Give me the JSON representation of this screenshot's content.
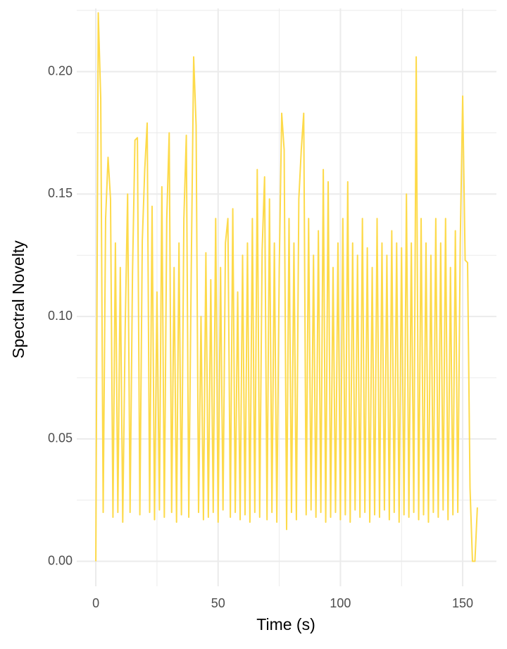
{
  "chart_data": {
    "type": "line",
    "x_label": "Time (s)",
    "y_label": "Spectral Novelty",
    "color": "#fdda4a",
    "grid": true,
    "xlim": [
      -7.8,
      163.8
    ],
    "ylim": [
      -0.0102,
      0.2258
    ],
    "xticks": [
      0,
      50,
      100,
      150
    ],
    "yticks": [
      {
        "value": 0,
        "label": "0.00"
      },
      {
        "value": 0.05,
        "label": "0.05"
      },
      {
        "value": 0.1,
        "label": "0.10"
      },
      {
        "value": 0.15,
        "label": "0.15"
      },
      {
        "value": 0.2,
        "label": "0.20"
      }
    ],
    "x_minor_ticks": [
      25,
      75,
      125
    ],
    "y_minor_ticks": [
      0.025,
      0.075,
      0.125,
      0.175,
      0.225
    ],
    "x": [
      0,
      1,
      2,
      3,
      4,
      5,
      6,
      7,
      8,
      9,
      10,
      11,
      12,
      13,
      14,
      15,
      16,
      17,
      18,
      19,
      20,
      21,
      22,
      23,
      24,
      25,
      26,
      27,
      28,
      29,
      30,
      31,
      32,
      33,
      34,
      35,
      36,
      37,
      38,
      39,
      40,
      41,
      42,
      43,
      44,
      45,
      46,
      47,
      48,
      49,
      50,
      51,
      52,
      53,
      54,
      55,
      56,
      57,
      58,
      59,
      60,
      61,
      62,
      63,
      64,
      65,
      66,
      67,
      68,
      69,
      70,
      71,
      72,
      73,
      74,
      75,
      76,
      77,
      78,
      79,
      80,
      81,
      82,
      83,
      84,
      85,
      86,
      87,
      88,
      89,
      90,
      91,
      92,
      93,
      94,
      95,
      96,
      97,
      98,
      99,
      100,
      101,
      102,
      103,
      104,
      105,
      106,
      107,
      108,
      109,
      110,
      111,
      112,
      113,
      114,
      115,
      116,
      117,
      118,
      119,
      120,
      121,
      122,
      123,
      124,
      125,
      126,
      127,
      128,
      129,
      130,
      131,
      132,
      133,
      134,
      135,
      136,
      137,
      138,
      139,
      140,
      141,
      142,
      143,
      144,
      145,
      146,
      147,
      148,
      149,
      150,
      151,
      152,
      153,
      154,
      155,
      156
    ],
    "values": [
      0,
      0.224,
      0.189,
      0.02,
      0.14,
      0.165,
      0.148,
      0.018,
      0.13,
      0.02,
      0.12,
      0.016,
      0.095,
      0.15,
      0.02,
      0.118,
      0.172,
      0.173,
      0.019,
      0.131,
      0.16,
      0.179,
      0.02,
      0.145,
      0.017,
      0.11,
      0.021,
      0.153,
      0.018,
      0.14,
      0.175,
      0.02,
      0.12,
      0.016,
      0.13,
      0.019,
      0.14,
      0.174,
      0.018,
      0.118,
      0.206,
      0.178,
      0.02,
      0.1,
      0.017,
      0.126,
      0.018,
      0.115,
      0.02,
      0.14,
      0.016,
      0.12,
      0.021,
      0.13,
      0.14,
      0.018,
      0.144,
      0.02,
      0.11,
      0.017,
      0.125,
      0.019,
      0.13,
      0.016,
      0.14,
      0.02,
      0.16,
      0.018,
      0.127,
      0.157,
      0.017,
      0.148,
      0.02,
      0.13,
      0.016,
      0.12,
      0.183,
      0.168,
      0.013,
      0.14,
      0.02,
      0.13,
      0.017,
      0.148,
      0.168,
      0.183,
      0.019,
      0.14,
      0.021,
      0.125,
      0.018,
      0.135,
      0.02,
      0.16,
      0.016,
      0.155,
      0.018,
      0.12,
      0.02,
      0.13,
      0.017,
      0.14,
      0.019,
      0.155,
      0.016,
      0.13,
      0.021,
      0.125,
      0.018,
      0.14,
      0.02,
      0.128,
      0.016,
      0.12,
      0.019,
      0.14,
      0.018,
      0.13,
      0.021,
      0.125,
      0.017,
      0.135,
      0.02,
      0.13,
      0.016,
      0.128,
      0.019,
      0.15,
      0.018,
      0.13,
      0.02,
      0.206,
      0.017,
      0.14,
      0.019,
      0.13,
      0.016,
      0.125,
      0.02,
      0.14,
      0.018,
      0.13,
      0.021,
      0.14,
      0.017,
      0.12,
      0.019,
      0.135,
      0.02,
      0.13,
      0.19,
      0.123,
      0.122,
      0.03,
      0,
      0,
      0.022
    ]
  }
}
